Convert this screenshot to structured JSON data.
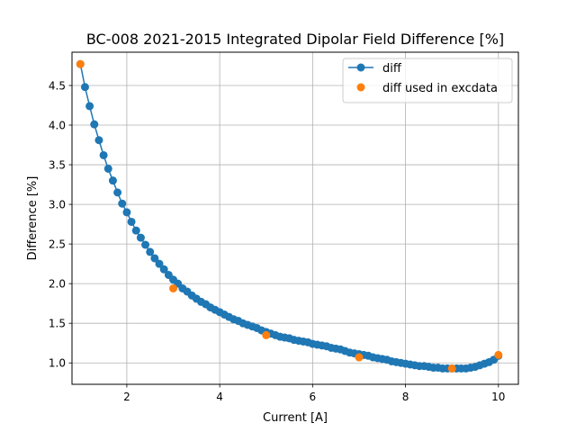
{
  "chart_data": {
    "type": "line",
    "title": "BC-008 2021-2015 Integrated Dipolar Field Difference [%]",
    "xlabel": "Current [A]",
    "ylabel": "Difference [%]",
    "xlim": [
      0.82,
      10.43
    ],
    "ylim": [
      0.73,
      4.92
    ],
    "xticks": [
      "2",
      "4",
      "6",
      "8",
      "10"
    ],
    "xtick_values": [
      2,
      4,
      6,
      8,
      10
    ],
    "yticks": [
      "1.0",
      "1.5",
      "2.0",
      "2.5",
      "3.0",
      "3.5",
      "4.0",
      "4.5"
    ],
    "ytick_values": [
      1.0,
      1.5,
      2.0,
      2.5,
      3.0,
      3.5,
      4.0,
      4.5
    ],
    "grid": true,
    "legend_position": "upper right",
    "series": [
      {
        "name": "diff",
        "color": "#1f77b4",
        "style": "line-with-markers",
        "x": [
          1.0,
          1.1,
          1.2,
          1.3,
          1.4,
          1.5,
          1.6,
          1.7,
          1.8,
          1.9,
          2.0,
          2.1,
          2.2,
          2.3,
          2.4,
          2.5,
          2.6,
          2.7,
          2.8,
          2.9,
          3.0,
          3.1,
          3.2,
          3.3,
          3.4,
          3.5,
          3.6,
          3.7,
          3.8,
          3.9,
          4.0,
          4.1,
          4.2,
          4.3,
          4.4,
          4.5,
          4.6,
          4.7,
          4.8,
          4.9,
          5.0,
          5.1,
          5.2,
          5.3,
          5.4,
          5.5,
          5.6,
          5.7,
          5.8,
          5.9,
          6.0,
          6.1,
          6.2,
          6.3,
          6.4,
          6.5,
          6.6,
          6.7,
          6.8,
          6.9,
          7.0,
          7.1,
          7.2,
          7.3,
          7.4,
          7.5,
          7.6,
          7.7,
          7.8,
          7.9,
          8.0,
          8.1,
          8.2,
          8.3,
          8.4,
          8.5,
          8.6,
          8.7,
          8.8,
          8.9,
          9.0,
          9.1,
          9.2,
          9.3,
          9.4,
          9.5,
          9.6,
          9.7,
          9.8,
          9.9,
          10.0
        ],
        "y": [
          4.77,
          4.48,
          4.24,
          4.01,
          3.81,
          3.62,
          3.45,
          3.3,
          3.15,
          3.01,
          2.9,
          2.78,
          2.67,
          2.58,
          2.49,
          2.4,
          2.32,
          2.25,
          2.18,
          2.11,
          2.05,
          2.0,
          1.94,
          1.9,
          1.85,
          1.81,
          1.77,
          1.74,
          1.7,
          1.67,
          1.64,
          1.61,
          1.58,
          1.55,
          1.53,
          1.5,
          1.48,
          1.46,
          1.44,
          1.41,
          1.39,
          1.37,
          1.35,
          1.33,
          1.32,
          1.31,
          1.29,
          1.28,
          1.27,
          1.26,
          1.24,
          1.23,
          1.22,
          1.21,
          1.19,
          1.18,
          1.17,
          1.15,
          1.13,
          1.12,
          1.11,
          1.1,
          1.09,
          1.07,
          1.06,
          1.05,
          1.04,
          1.02,
          1.01,
          1.0,
          0.99,
          0.98,
          0.97,
          0.96,
          0.96,
          0.95,
          0.94,
          0.94,
          0.93,
          0.93,
          0.93,
          0.93,
          0.93,
          0.93,
          0.94,
          0.95,
          0.97,
          0.99,
          1.01,
          1.04,
          1.09
        ]
      },
      {
        "name": "diff used in excdata",
        "color": "#ff7f0e",
        "style": "markers",
        "x": [
          1.0,
          3.0,
          5.0,
          7.0,
          9.0,
          10.0
        ],
        "y": [
          4.77,
          1.94,
          1.35,
          1.07,
          0.93,
          1.1
        ]
      }
    ]
  }
}
